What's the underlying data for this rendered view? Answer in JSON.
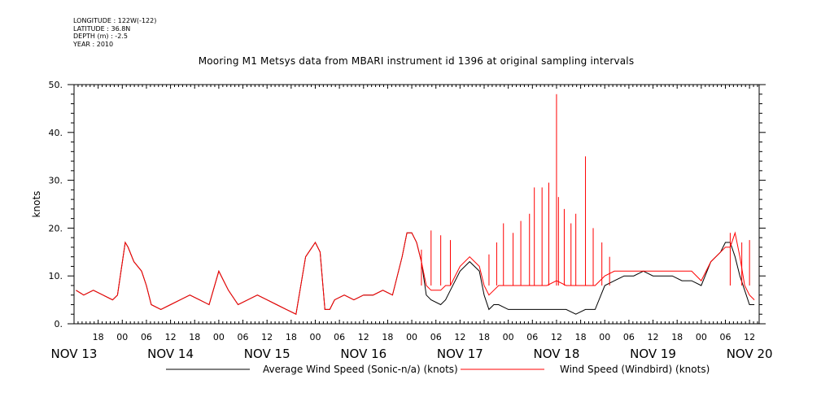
{
  "meta": {
    "longitude": "LONGITUDE : 122W(-122)",
    "latitude": "LATITUDE : 36.8N",
    "depth": "DEPTH (m) : -2.5",
    "year": "YEAR : 2010"
  },
  "chart_data": {
    "type": "line",
    "title": "Mooring M1 Metsys data from MBARI instrument id 1396 at original sampling intervals",
    "ylabel": "knots",
    "ylim": [
      0,
      50
    ],
    "yticks": [
      "0.",
      "10.",
      "20.",
      "30.",
      "40.",
      "50."
    ],
    "xlim": [
      13.5,
      20.6
    ],
    "hour_tick_labels": [
      {
        "x": 13.75,
        "label": "18"
      },
      {
        "x": 14.0,
        "label": "00"
      },
      {
        "x": 14.25,
        "label": "06"
      },
      {
        "x": 14.5,
        "label": "12"
      },
      {
        "x": 14.75,
        "label": "18"
      },
      {
        "x": 15.0,
        "label": "00"
      },
      {
        "x": 15.25,
        "label": "06"
      },
      {
        "x": 15.5,
        "label": "12"
      },
      {
        "x": 15.75,
        "label": "18"
      },
      {
        "x": 16.0,
        "label": "00"
      },
      {
        "x": 16.25,
        "label": "06"
      },
      {
        "x": 16.5,
        "label": "12"
      },
      {
        "x": 16.75,
        "label": "18"
      },
      {
        "x": 17.0,
        "label": "00"
      },
      {
        "x": 17.25,
        "label": "06"
      },
      {
        "x": 17.5,
        "label": "12"
      },
      {
        "x": 17.75,
        "label": "18"
      },
      {
        "x": 18.0,
        "label": "00"
      },
      {
        "x": 18.25,
        "label": "06"
      },
      {
        "x": 18.5,
        "label": "12"
      },
      {
        "x": 18.75,
        "label": "18"
      },
      {
        "x": 19.0,
        "label": "00"
      },
      {
        "x": 19.25,
        "label": "06"
      },
      {
        "x": 19.5,
        "label": "12"
      },
      {
        "x": 19.75,
        "label": "18"
      },
      {
        "x": 20.0,
        "label": "00"
      },
      {
        "x": 20.25,
        "label": "06"
      },
      {
        "x": 20.5,
        "label": "12"
      }
    ],
    "day_labels": [
      {
        "x": 13.5,
        "label": "NOV 13"
      },
      {
        "x": 14.5,
        "label": "NOV 14"
      },
      {
        "x": 15.5,
        "label": "NOV 15"
      },
      {
        "x": 16.5,
        "label": "NOV 16"
      },
      {
        "x": 17.5,
        "label": "NOV 17"
      },
      {
        "x": 18.5,
        "label": "NOV 18"
      },
      {
        "x": 19.5,
        "label": "NOV 19"
      },
      {
        "x": 20.5,
        "label": "NOV 20"
      }
    ],
    "series": [
      {
        "name": "Average Wind Speed (Sonic-n/a) (knots)",
        "color": "#000000",
        "x": [
          13.52,
          13.6,
          13.7,
          13.8,
          13.9,
          13.95,
          14.03,
          14.06,
          14.12,
          14.2,
          14.25,
          14.3,
          14.4,
          14.5,
          14.6,
          14.7,
          14.8,
          14.9,
          15.0,
          15.05,
          15.1,
          15.2,
          15.3,
          15.4,
          15.5,
          15.6,
          15.7,
          15.8,
          15.9,
          16.0,
          16.05,
          16.1,
          16.15,
          16.2,
          16.3,
          16.4,
          16.5,
          16.6,
          16.7,
          16.8,
          16.9,
          16.95,
          17.0,
          17.05,
          17.1,
          17.15,
          17.2,
          17.3,
          17.35,
          17.4,
          17.5,
          17.6,
          17.7,
          17.75,
          17.8,
          17.85,
          17.9,
          18.0,
          18.1,
          18.2,
          18.3,
          18.4,
          18.5,
          18.6,
          18.7,
          18.8,
          18.9,
          19.0,
          19.1,
          19.2,
          19.3,
          19.4,
          19.5,
          19.6,
          19.7,
          19.8,
          19.9,
          20.0,
          20.1,
          20.2,
          20.25,
          20.3,
          20.35,
          20.4,
          20.45,
          20.5,
          20.55
        ],
        "y": [
          7,
          6,
          7,
          6,
          5,
          6,
          17,
          16,
          13,
          11,
          8,
          4,
          3,
          4,
          5,
          6,
          5,
          4,
          11,
          9,
          7,
          4,
          5,
          6,
          5,
          4,
          3,
          2,
          14,
          17,
          15,
          3,
          3,
          5,
          6,
          5,
          6,
          6,
          7,
          6,
          14,
          19,
          19,
          17,
          13,
          6,
          5,
          4,
          5,
          7,
          11,
          13,
          11,
          6,
          3,
          4,
          4,
          3,
          3,
          3,
          3,
          3,
          3,
          3,
          2,
          3,
          3,
          8,
          9,
          10,
          10,
          11,
          10,
          10,
          10,
          9,
          9,
          8,
          13,
          15,
          17,
          17,
          14,
          10,
          7,
          4,
          4
        ]
      },
      {
        "name": "Wind Speed (Windbird) (knots)",
        "color": "#ff0000",
        "x": [
          13.52,
          13.6,
          13.7,
          13.8,
          13.9,
          13.95,
          14.03,
          14.06,
          14.12,
          14.2,
          14.25,
          14.3,
          14.4,
          14.5,
          14.6,
          14.7,
          14.8,
          14.9,
          15.0,
          15.05,
          15.1,
          15.2,
          15.3,
          15.4,
          15.5,
          15.6,
          15.7,
          15.8,
          15.9,
          16.0,
          16.05,
          16.1,
          16.15,
          16.2,
          16.3,
          16.4,
          16.5,
          16.6,
          16.7,
          16.8,
          16.9,
          16.95,
          17.0,
          17.05,
          17.1,
          17.15,
          17.2,
          17.3,
          17.35,
          17.4,
          17.5,
          17.6,
          17.7,
          17.75,
          17.8,
          17.85,
          17.9,
          18.0,
          18.1,
          18.2,
          18.3,
          18.4,
          18.5,
          18.6,
          18.7,
          18.8,
          18.9,
          19.0,
          19.1,
          19.2,
          19.3,
          19.4,
          19.5,
          19.6,
          19.7,
          19.8,
          19.9,
          20.0,
          20.1,
          20.2,
          20.25,
          20.3,
          20.35,
          20.4,
          20.45,
          20.5,
          20.55
        ],
        "y": [
          7,
          6,
          7,
          6,
          5,
          6,
          17,
          16,
          13,
          11,
          8,
          4,
          3,
          4,
          5,
          6,
          5,
          4,
          11,
          9,
          7,
          4,
          5,
          6,
          5,
          4,
          3,
          2,
          14,
          17,
          15,
          3,
          3,
          5,
          6,
          5,
          6,
          6,
          7,
          6,
          14,
          19,
          19,
          17,
          13,
          8,
          7,
          7,
          8,
          8,
          12,
          14,
          12,
          8,
          6,
          7,
          8,
          8,
          8,
          8,
          8,
          8,
          9,
          8,
          8,
          8,
          8,
          10,
          11,
          11,
          11,
          11,
          11,
          11,
          11,
          11,
          11,
          9,
          13,
          15,
          16,
          16,
          19,
          14,
          8,
          6,
          5
        ],
        "spikes": [
          {
            "x": 17.1,
            "y": 15.5
          },
          {
            "x": 17.2,
            "y": 19.5
          },
          {
            "x": 17.3,
            "y": 18.5
          },
          {
            "x": 17.4,
            "y": 17.5
          },
          {
            "x": 17.8,
            "y": 14.5
          },
          {
            "x": 17.88,
            "y": 17
          },
          {
            "x": 17.95,
            "y": 21
          },
          {
            "x": 18.05,
            "y": 19
          },
          {
            "x": 18.13,
            "y": 21.5
          },
          {
            "x": 18.22,
            "y": 23
          },
          {
            "x": 18.27,
            "y": 28.5
          },
          {
            "x": 18.35,
            "y": 28.5
          },
          {
            "x": 18.42,
            "y": 29.5
          },
          {
            "x": 18.5,
            "y": 48
          },
          {
            "x": 18.52,
            "y": 26.5
          },
          {
            "x": 18.58,
            "y": 24
          },
          {
            "x": 18.65,
            "y": 21
          },
          {
            "x": 18.7,
            "y": 23
          },
          {
            "x": 18.8,
            "y": 35
          },
          {
            "x": 18.88,
            "y": 20
          },
          {
            "x": 18.97,
            "y": 17
          },
          {
            "x": 19.05,
            "y": 14
          },
          {
            "x": 20.3,
            "y": 19
          },
          {
            "x": 20.42,
            "y": 17
          },
          {
            "x": 20.5,
            "y": 17.5
          }
        ]
      }
    ],
    "legend_position": "bottom"
  }
}
